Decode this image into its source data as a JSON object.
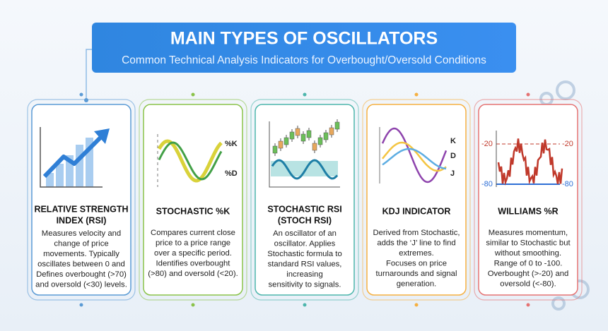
{
  "header": {
    "title": "MAIN TYPES OF OSCILLATORS",
    "subtitle": "Common Technical Analysis Indicators for Overbought/Oversold Conditions"
  },
  "cards": [
    {
      "title": [
        "RELATIVE STRENGTH",
        "INDEX (RSI)"
      ],
      "description": [
        "Measures velocity and",
        "change of price",
        "movements. Typically",
        "oscillates between 0 and",
        "Defines overbought (>70)",
        "and oversold (<30) levels."
      ],
      "icon_labels": []
    },
    {
      "title": [
        "STOCHASTIC %K"
      ],
      "description": [
        "Compares current close",
        "price to a price range",
        "over a specific period.",
        "Identifies overbought",
        "(>80) and oversold (<20)."
      ],
      "icon_labels": [
        "%K",
        "%D"
      ]
    },
    {
      "title": [
        "STOCHASTIC RSI",
        "(STOCH RSI)"
      ],
      "description": [
        "An oscillator of an",
        "oscillator. Applies",
        "Stochastic formula to",
        "standard RSI values,",
        "increasing",
        "sensitivity to signals."
      ],
      "icon_labels": []
    },
    {
      "title": [
        "KDJ INDICATOR"
      ],
      "description": [
        "Derived from Stochastic,",
        "adds the ‘J’ line to find",
        "extremes.",
        "Focuses on price",
        "turnarounds and signal",
        "generation."
      ],
      "icon_labels": [
        "K",
        "D",
        "J"
      ]
    },
    {
      "title": [
        "WILLIAMS %R"
      ],
      "description": [
        "Measures momentum,",
        "similar to Stochastic but",
        "without smoothing.",
        "Range of 0 to -100.",
        "Overbought (>-20) and",
        "oversold (<-80)."
      ],
      "icon_labels": [
        "-20",
        "-20",
        "-80",
        "-80"
      ]
    }
  ]
}
